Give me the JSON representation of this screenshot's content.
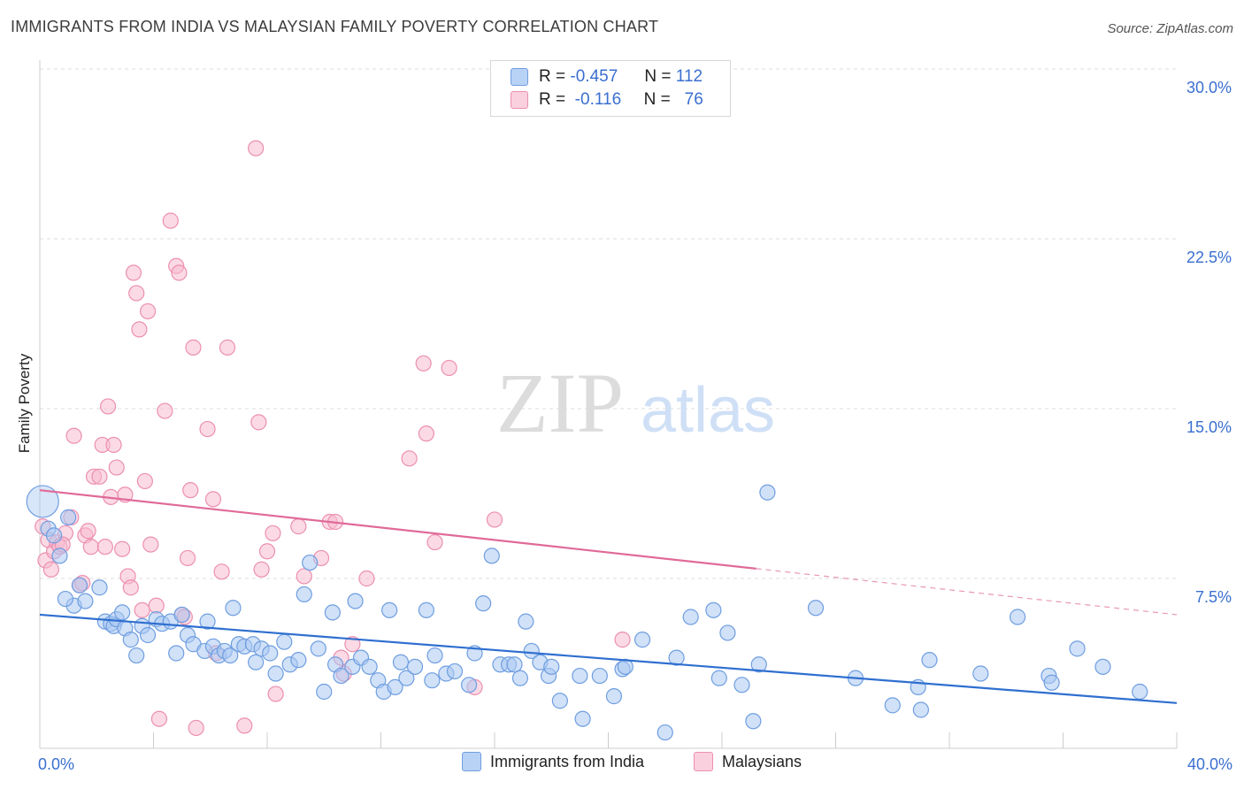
{
  "title": "IMMIGRANTS FROM INDIA VS MALAYSIAN FAMILY POVERTY CORRELATION CHART",
  "source": "Source: ZipAtlas.com",
  "watermark": {
    "zip": "ZIP",
    "atlas": "atlas"
  },
  "legend_top": [
    {
      "r_label": "R =",
      "r_value": "-0.457",
      "n_label": "N =",
      "n_value": "112"
    },
    {
      "r_label": "R =",
      "r_value": "-0.116",
      "n_label": "N =",
      "n_value": "76"
    }
  ],
  "legend_bottom": [
    "Immigrants from India",
    "Malaysians"
  ],
  "colors": {
    "india_fill": "#a9c8f2",
    "india_stroke": "#6f9ee0",
    "india_line": "#2f6fd0",
    "malay_fill": "#f7bcd0",
    "malay_stroke": "#ec8fb0",
    "malay_line": "#e06a98",
    "tick_label": "#3a6fd0",
    "grid": "#dcdcdc"
  },
  "chart_data": {
    "type": "scatter",
    "title": "IMMIGRANTS FROM INDIA VS MALAYSIAN FAMILY POVERTY CORRELATION CHART",
    "xlabel": "",
    "ylabel": "Family Poverty",
    "xlim": [
      0,
      40
    ],
    "ylim": [
      0,
      30
    ],
    "x_tick_labels": [
      "0.0%",
      "40.0%"
    ],
    "y_ticks": [
      7.5,
      15.0,
      22.5,
      30.0
    ],
    "y_tick_labels": [
      "7.5%",
      "15.0%",
      "22.5%",
      "30.0%"
    ],
    "grid": true,
    "series": [
      {
        "name": "Immigrants from India",
        "trend": {
          "x": [
            0,
            40
          ],
          "y": [
            5.9,
            2.0
          ],
          "solid_to": 40
        },
        "points": [
          [
            0.1,
            10.9
          ],
          [
            0.3,
            9.7
          ],
          [
            0.5,
            9.4
          ],
          [
            0.7,
            8.5
          ],
          [
            1.0,
            10.2
          ],
          [
            1.2,
            6.3
          ],
          [
            1.4,
            7.2
          ],
          [
            1.6,
            6.5
          ],
          [
            2.1,
            7.1
          ],
          [
            2.3,
            5.6
          ],
          [
            2.5,
            5.5
          ],
          [
            2.6,
            5.4
          ],
          [
            2.7,
            5.7
          ],
          [
            3.0,
            5.3
          ],
          [
            3.2,
            4.8
          ],
          [
            3.4,
            4.1
          ],
          [
            3.6,
            5.4
          ],
          [
            3.8,
            5.0
          ],
          [
            4.1,
            5.7
          ],
          [
            4.3,
            5.5
          ],
          [
            4.6,
            5.6
          ],
          [
            4.8,
            4.2
          ],
          [
            5.0,
            5.9
          ],
          [
            5.2,
            5.0
          ],
          [
            5.4,
            4.6
          ],
          [
            5.8,
            4.3
          ],
          [
            5.9,
            5.6
          ],
          [
            6.1,
            4.5
          ],
          [
            6.3,
            4.1
          ],
          [
            6.5,
            4.3
          ],
          [
            6.7,
            4.1
          ],
          [
            7.0,
            4.6
          ],
          [
            7.2,
            4.5
          ],
          [
            7.5,
            4.6
          ],
          [
            7.6,
            3.8
          ],
          [
            7.8,
            4.4
          ],
          [
            8.1,
            4.2
          ],
          [
            8.3,
            3.3
          ],
          [
            8.6,
            4.7
          ],
          [
            8.8,
            3.7
          ],
          [
            9.1,
            3.9
          ],
          [
            9.3,
            6.8
          ],
          [
            9.5,
            8.2
          ],
          [
            9.8,
            4.4
          ],
          [
            10.0,
            2.5
          ],
          [
            10.3,
            6.0
          ],
          [
            10.4,
            3.7
          ],
          [
            10.6,
            3.2
          ],
          [
            11.0,
            3.6
          ],
          [
            11.1,
            6.5
          ],
          [
            11.3,
            4.0
          ],
          [
            11.6,
            3.6
          ],
          [
            11.9,
            3.0
          ],
          [
            12.1,
            2.5
          ],
          [
            12.3,
            6.1
          ],
          [
            12.5,
            2.7
          ],
          [
            12.7,
            3.8
          ],
          [
            12.9,
            3.1
          ],
          [
            13.2,
            3.6
          ],
          [
            13.6,
            6.1
          ],
          [
            13.8,
            3.0
          ],
          [
            13.9,
            4.1
          ],
          [
            14.3,
            3.3
          ],
          [
            14.6,
            3.4
          ],
          [
            15.1,
            2.8
          ],
          [
            15.3,
            4.2
          ],
          [
            15.6,
            6.4
          ],
          [
            15.9,
            8.5
          ],
          [
            16.2,
            3.7
          ],
          [
            16.5,
            3.7
          ],
          [
            16.7,
            3.7
          ],
          [
            16.9,
            3.1
          ],
          [
            17.1,
            5.6
          ],
          [
            17.3,
            4.3
          ],
          [
            17.6,
            3.8
          ],
          [
            17.9,
            3.2
          ],
          [
            18.0,
            3.6
          ],
          [
            18.3,
            2.1
          ],
          [
            19.0,
            3.2
          ],
          [
            19.1,
            1.3
          ],
          [
            19.7,
            3.2
          ],
          [
            20.2,
            2.3
          ],
          [
            20.5,
            3.5
          ],
          [
            20.6,
            3.6
          ],
          [
            21.2,
            4.8
          ],
          [
            22.0,
            0.7
          ],
          [
            22.4,
            4.0
          ],
          [
            22.9,
            5.8
          ],
          [
            23.7,
            6.1
          ],
          [
            23.9,
            3.1
          ],
          [
            24.2,
            5.1
          ],
          [
            24.7,
            2.8
          ],
          [
            25.1,
            1.2
          ],
          [
            25.3,
            3.7
          ],
          [
            25.6,
            11.3
          ],
          [
            27.3,
            6.2
          ],
          [
            28.7,
            3.1
          ],
          [
            30.0,
            1.9
          ],
          [
            30.9,
            2.7
          ],
          [
            31.0,
            1.7
          ],
          [
            31.3,
            3.9
          ],
          [
            33.1,
            3.3
          ],
          [
            34.4,
            5.8
          ],
          [
            35.5,
            3.2
          ],
          [
            35.6,
            2.9
          ],
          [
            36.5,
            4.4
          ],
          [
            37.4,
            3.6
          ],
          [
            38.7,
            2.5
          ],
          [
            0.9,
            6.6
          ],
          [
            2.9,
            6.0
          ],
          [
            6.8,
            6.2
          ]
        ]
      },
      {
        "name": "Malaysians",
        "trend": {
          "x": [
            0,
            40
          ],
          "y": [
            11.4,
            5.9
          ],
          "solid_to": 25.2
        },
        "points": [
          [
            0.1,
            9.8
          ],
          [
            0.2,
            8.3
          ],
          [
            0.3,
            9.2
          ],
          [
            0.4,
            7.9
          ],
          [
            0.5,
            8.7
          ],
          [
            0.6,
            9.1
          ],
          [
            0.7,
            8.9
          ],
          [
            0.9,
            9.5
          ],
          [
            1.1,
            10.2
          ],
          [
            1.2,
            13.8
          ],
          [
            1.4,
            7.2
          ],
          [
            1.6,
            9.4
          ],
          [
            1.7,
            9.6
          ],
          [
            1.8,
            8.9
          ],
          [
            1.9,
            12.0
          ],
          [
            2.1,
            12.0
          ],
          [
            2.2,
            13.4
          ],
          [
            2.3,
            8.9
          ],
          [
            2.4,
            15.1
          ],
          [
            2.5,
            11.1
          ],
          [
            2.6,
            13.4
          ],
          [
            2.7,
            12.4
          ],
          [
            2.9,
            8.8
          ],
          [
            3.0,
            11.2
          ],
          [
            3.1,
            7.6
          ],
          [
            3.2,
            7.1
          ],
          [
            3.3,
            21.0
          ],
          [
            3.4,
            20.1
          ],
          [
            3.5,
            18.5
          ],
          [
            3.6,
            6.1
          ],
          [
            3.7,
            11.8
          ],
          [
            3.8,
            19.3
          ],
          [
            3.9,
            9.0
          ],
          [
            4.1,
            6.3
          ],
          [
            4.2,
            1.3
          ],
          [
            4.4,
            14.9
          ],
          [
            4.6,
            23.3
          ],
          [
            4.8,
            21.3
          ],
          [
            4.9,
            21.0
          ],
          [
            5.0,
            5.9
          ],
          [
            5.1,
            5.8
          ],
          [
            5.2,
            8.4
          ],
          [
            5.3,
            11.4
          ],
          [
            5.4,
            17.7
          ],
          [
            5.5,
            0.9
          ],
          [
            5.9,
            14.1
          ],
          [
            6.1,
            11.0
          ],
          [
            6.2,
            4.2
          ],
          [
            6.4,
            7.8
          ],
          [
            6.6,
            17.7
          ],
          [
            7.2,
            1.0
          ],
          [
            7.6,
            26.5
          ],
          [
            7.7,
            14.4
          ],
          [
            7.8,
            7.9
          ],
          [
            8.0,
            8.7
          ],
          [
            8.2,
            9.5
          ],
          [
            8.3,
            2.4
          ],
          [
            9.1,
            9.8
          ],
          [
            9.3,
            7.6
          ],
          [
            9.9,
            8.4
          ],
          [
            10.2,
            10.0
          ],
          [
            10.4,
            10.0
          ],
          [
            10.6,
            4.0
          ],
          [
            10.7,
            3.3
          ],
          [
            11.0,
            4.6
          ],
          [
            11.5,
            7.5
          ],
          [
            13.0,
            12.8
          ],
          [
            13.5,
            17.0
          ],
          [
            13.6,
            13.9
          ],
          [
            13.9,
            9.1
          ],
          [
            14.4,
            16.8
          ],
          [
            15.3,
            2.7
          ],
          [
            16.0,
            10.1
          ],
          [
            20.5,
            4.8
          ],
          [
            0.8,
            9.0
          ],
          [
            1.5,
            7.3
          ]
        ]
      }
    ]
  }
}
